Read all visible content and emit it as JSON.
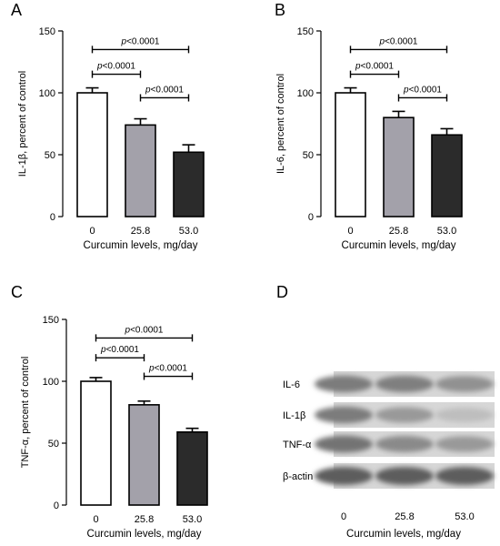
{
  "figure": {
    "x_label": "Curcumin levels, mg/day"
  },
  "chart_data": [
    {
      "panel": "A",
      "type": "bar",
      "categories": [
        "0",
        "25.8",
        "53.0"
      ],
      "values": [
        100,
        74,
        52
      ],
      "errors": [
        4,
        5,
        6
      ],
      "ylabel": "IL-1β, percent of control",
      "xlabel": "Curcumin levels, mg/day",
      "ylim": [
        0,
        150
      ],
      "yticks": [
        0,
        50,
        100,
        150
      ],
      "bar_colors": [
        "#ffffff",
        "#a3a1aa",
        "#2b2b2b"
      ],
      "brackets": [
        {
          "from": 0,
          "to": 2,
          "level": 135,
          "label": "p<0.0001"
        },
        {
          "from": 0,
          "to": 1,
          "level": 115,
          "label": "p<0.0001"
        },
        {
          "from": 1,
          "to": 2,
          "level": 96,
          "label": "p<0.0001"
        }
      ]
    },
    {
      "panel": "B",
      "type": "bar",
      "categories": [
        "0",
        "25.8",
        "53.0"
      ],
      "values": [
        100,
        80,
        66
      ],
      "errors": [
        4,
        5,
        5
      ],
      "ylabel": "IL-6, percent of control",
      "xlabel": "Curcumin levels, mg/day",
      "ylim": [
        0,
        150
      ],
      "yticks": [
        0,
        50,
        100,
        150
      ],
      "bar_colors": [
        "#ffffff",
        "#a3a1aa",
        "#2b2b2b"
      ],
      "brackets": [
        {
          "from": 0,
          "to": 2,
          "level": 135,
          "label": "p<0.0001"
        },
        {
          "from": 0,
          "to": 1,
          "level": 115,
          "label": "p<0.0001"
        },
        {
          "from": 1,
          "to": 2,
          "level": 96,
          "label": "p<0.0001"
        }
      ]
    },
    {
      "panel": "C",
      "type": "bar",
      "categories": [
        "0",
        "25.8",
        "53.0"
      ],
      "values": [
        100,
        81,
        59
      ],
      "errors": [
        3,
        3,
        3
      ],
      "ylabel": "TNF-α, percent of control",
      "xlabel": "Curcumin levels, mg/day",
      "ylim": [
        0,
        150
      ],
      "yticks": [
        0,
        50,
        100,
        150
      ],
      "bar_colors": [
        "#ffffff",
        "#a3a1aa",
        "#2b2b2b"
      ],
      "brackets": [
        {
          "from": 0,
          "to": 2,
          "level": 135,
          "label": "p<0.0001"
        },
        {
          "from": 0,
          "to": 1,
          "level": 119,
          "label": "p<0.0001"
        },
        {
          "from": 1,
          "to": 2,
          "level": 104,
          "label": "p<0.0001"
        }
      ]
    }
  ],
  "western_blot": {
    "panel": "D",
    "rows": [
      {
        "label": "IL-6",
        "intensity": [
          0.75,
          0.72,
          0.6
        ]
      },
      {
        "label": "IL-1β",
        "intensity": [
          0.75,
          0.55,
          0.3
        ]
      },
      {
        "label": "TNF-α",
        "intensity": [
          0.8,
          0.65,
          0.55
        ]
      },
      {
        "label": "β-actin",
        "intensity": [
          0.95,
          0.95,
          0.95
        ]
      }
    ],
    "lanes": [
      "0",
      "25.8",
      "53.0"
    ],
    "xlabel": "Curcumin levels, mg/day"
  }
}
